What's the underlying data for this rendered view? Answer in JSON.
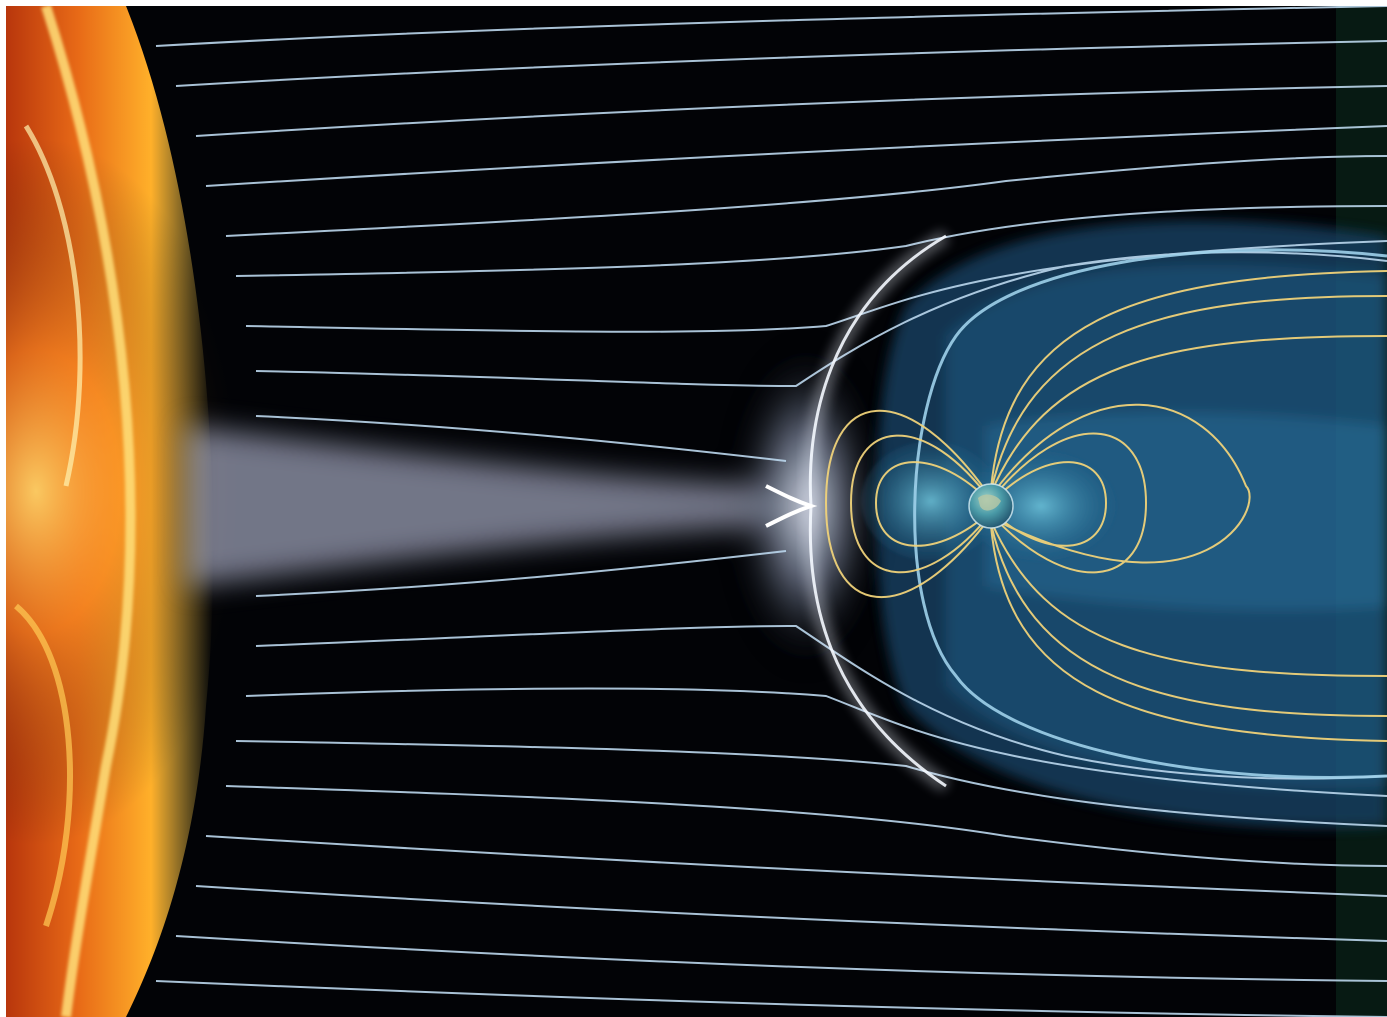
{
  "image": {
    "subject": "sun",
    "secondary_subject": "earth",
    "palette": {
      "background": "#000000",
      "sun_core": "#ffd24a",
      "sun_edge": "#d2410f",
      "solar_wind": "#cfe6f5",
      "field_lines": "#f0d27a",
      "magnetosphere": "#3b84b8",
      "earth": "#4ea2b0",
      "frame_edge": "#0f4a30"
    }
  }
}
